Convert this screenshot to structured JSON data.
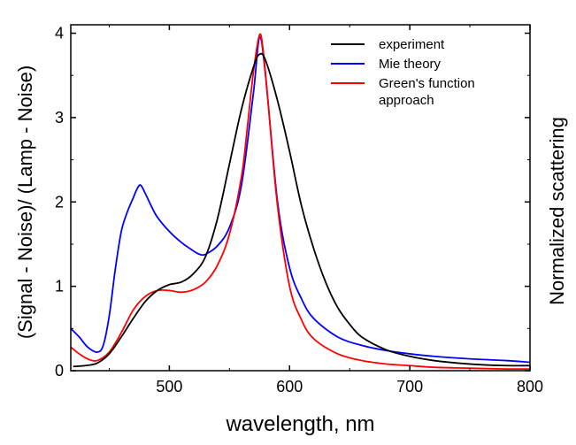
{
  "chart_data": {
    "type": "line",
    "xlabel": "wavelength, nm",
    "ylabel": "(Signal - Noise)/ (Lamp - Noise)",
    "ylabel_right": "Normalized scattering",
    "xlim": [
      418,
      800
    ],
    "ylim": [
      0,
      4.1
    ],
    "x_ticks": [
      500,
      600,
      700,
      800
    ],
    "x_tick_labels": [
      "500",
      "600",
      "700",
      "800"
    ],
    "y_ticks": [
      0,
      1,
      2,
      3,
      4
    ],
    "y_tick_labels": [
      "0",
      "1",
      "2",
      "3",
      "4"
    ],
    "legend_position": "top-right",
    "series": [
      {
        "name": "experiment",
        "color": "#000000",
        "x": [
          420,
          430,
          440,
          450,
          460,
          470,
          480,
          490,
          500,
          510,
          520,
          530,
          540,
          550,
          560,
          570,
          575,
          580,
          590,
          600,
          610,
          620,
          630,
          640,
          650,
          660,
          680,
          700,
          720,
          740,
          760,
          780,
          800
        ],
        "y": [
          0.05,
          0.06,
          0.09,
          0.2,
          0.4,
          0.62,
          0.82,
          0.95,
          1.02,
          1.05,
          1.15,
          1.35,
          1.8,
          2.45,
          3.1,
          3.6,
          3.75,
          3.68,
          3.2,
          2.6,
          1.95,
          1.45,
          1.05,
          0.75,
          0.55,
          0.4,
          0.25,
          0.17,
          0.12,
          0.09,
          0.07,
          0.06,
          0.06
        ]
      },
      {
        "name": "Mie theory",
        "color": "#0000ff",
        "x": [
          418,
          425,
          432,
          440,
          445,
          450,
          455,
          460,
          465,
          470,
          473,
          476,
          480,
          485,
          490,
          500,
          510,
          520,
          525,
          530,
          540,
          550,
          560,
          570,
          575,
          580,
          590,
          600,
          610,
          620,
          640,
          660,
          680,
          700,
          720,
          750,
          780,
          800
        ],
        "y": [
          0.5,
          0.4,
          0.28,
          0.22,
          0.3,
          0.65,
          1.2,
          1.65,
          1.88,
          2.05,
          2.15,
          2.2,
          2.1,
          1.95,
          1.82,
          1.65,
          1.52,
          1.42,
          1.38,
          1.38,
          1.48,
          1.7,
          2.2,
          3.3,
          3.95,
          3.5,
          2.0,
          1.22,
          0.85,
          0.62,
          0.4,
          0.3,
          0.24,
          0.2,
          0.17,
          0.14,
          0.12,
          0.1
        ]
      },
      {
        "name": "Green's function\n approach",
        "color": "#ff0000",
        "x": [
          418,
          425,
          432,
          440,
          450,
          460,
          470,
          480,
          490,
          500,
          510,
          520,
          530,
          540,
          550,
          560,
          565,
          570,
          575,
          578,
          582,
          590,
          600,
          610,
          620,
          640,
          660,
          680,
          700,
          720,
          750,
          780,
          800
        ],
        "y": [
          0.28,
          0.2,
          0.14,
          0.12,
          0.22,
          0.45,
          0.72,
          0.88,
          0.95,
          0.95,
          0.93,
          0.96,
          1.05,
          1.25,
          1.62,
          2.3,
          2.9,
          3.55,
          3.98,
          3.8,
          3.2,
          1.95,
          1.0,
          0.6,
          0.38,
          0.2,
          0.12,
          0.08,
          0.06,
          0.04,
          0.03,
          0.02,
          0.02
        ]
      }
    ]
  }
}
